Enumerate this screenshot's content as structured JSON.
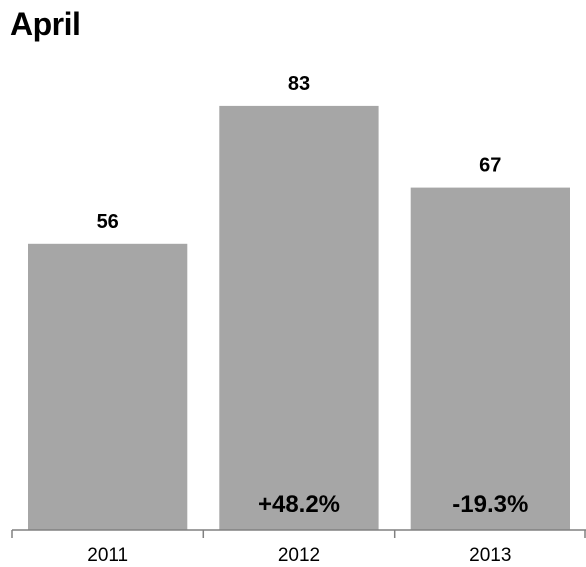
{
  "chart_data": {
    "type": "bar",
    "title": "April",
    "categories": [
      "2011",
      "2012",
      "2013"
    ],
    "values": [
      56,
      83,
      67
    ],
    "data_labels": [
      "56",
      "83",
      "67"
    ],
    "change_labels": [
      "",
      "+48.2%",
      "-19.3%"
    ],
    "bar_color": "#a6a6a6",
    "axis_color": "#808080",
    "ylim": [
      0,
      100
    ],
    "grid": false,
    "xlabel": "",
    "ylabel": ""
  }
}
